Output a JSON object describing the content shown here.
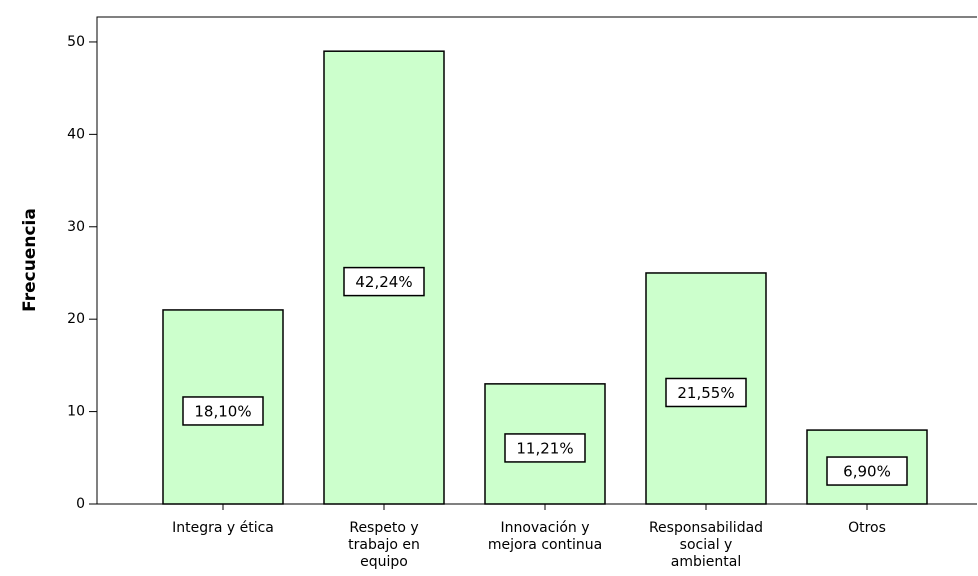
{
  "chart_data": {
    "type": "bar",
    "ylabel": "Frecuencia",
    "categories": [
      [
        "Integra y ética"
      ],
      [
        "Respeto y",
        "trabajo en",
        "equipo"
      ],
      [
        "Innovación y",
        "mejora continua"
      ],
      [
        "Responsabilidad",
        "social y",
        "ambiental"
      ],
      [
        "Otros"
      ]
    ],
    "values": [
      21,
      49,
      13,
      25,
      8
    ],
    "percentages": [
      18.1,
      42.24,
      11.21,
      21.55,
      6.9
    ],
    "percentage_labels": [
      "18,10%",
      "42,24%",
      "11,21%",
      "21,55%",
      "6,90%"
    ],
    "color": "#ccffcc",
    "ylim": [
      0,
      52.7
    ],
    "yticks": [
      0,
      10,
      20,
      30,
      40,
      50
    ],
    "grid": false
  }
}
